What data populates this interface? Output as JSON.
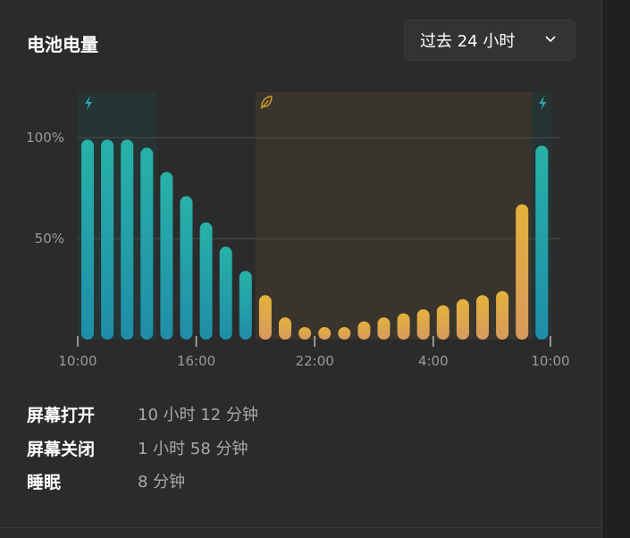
{
  "panel": {
    "title": "电池电量",
    "range_select": {
      "value": "过去 24 小时",
      "icon": "chevron-down-icon"
    }
  },
  "chart_data": {
    "type": "bar",
    "ylim": [
      0,
      120
    ],
    "y_ticks": [
      {
        "value": 100,
        "label": "100%"
      },
      {
        "value": 50,
        "label": "50%"
      }
    ],
    "x_ticks": [
      "10:00",
      "16:00",
      "22:00",
      "4:00",
      "10:00"
    ],
    "bar_count": 24,
    "values": [
      99,
      99,
      99,
      95,
      83,
      71,
      58,
      46,
      34,
      22,
      11,
      6,
      5,
      6,
      9,
      11,
      13,
      15,
      17,
      20,
      22,
      24,
      67,
      96
    ],
    "modes": [
      "charge",
      "charge",
      "charge",
      "charge",
      "charge",
      "charge",
      "charge",
      "charge",
      "charge",
      "saver",
      "saver",
      "saver",
      "saver",
      "saver",
      "saver",
      "saver",
      "saver",
      "saver",
      "saver",
      "saver",
      "saver",
      "saver",
      "saver",
      "charge"
    ],
    "bands": [
      {
        "kind": "charging",
        "icon": "lightning-icon",
        "from_bar": 0,
        "to_bar": 3
      },
      {
        "kind": "battery-saver",
        "icon": "leaf-icon",
        "from_bar": 9,
        "to_bar": 22
      },
      {
        "kind": "charging",
        "icon": "lightning-icon",
        "from_bar": 23,
        "to_bar": 23
      }
    ],
    "colors": {
      "charge_top": "#27b2a8",
      "charge_bottom": "#1f8da8",
      "saver_top": "#e3b23c",
      "saver_bottom": "#d89a5e",
      "charge_band": "#263434",
      "saver_band": "#39352d",
      "grid": "#4c4c4c",
      "tick_text": "#9a9a9a",
      "charge_icon": "#2aa7b7",
      "saver_icon": "#d39a2c"
    }
  },
  "stats": [
    {
      "label": "屏幕打开",
      "value": "10 小时 12 分钟"
    },
    {
      "label": "屏幕关闭",
      "value": "1 小时 58 分钟"
    },
    {
      "label": "睡眠",
      "value": "8 分钟"
    }
  ]
}
